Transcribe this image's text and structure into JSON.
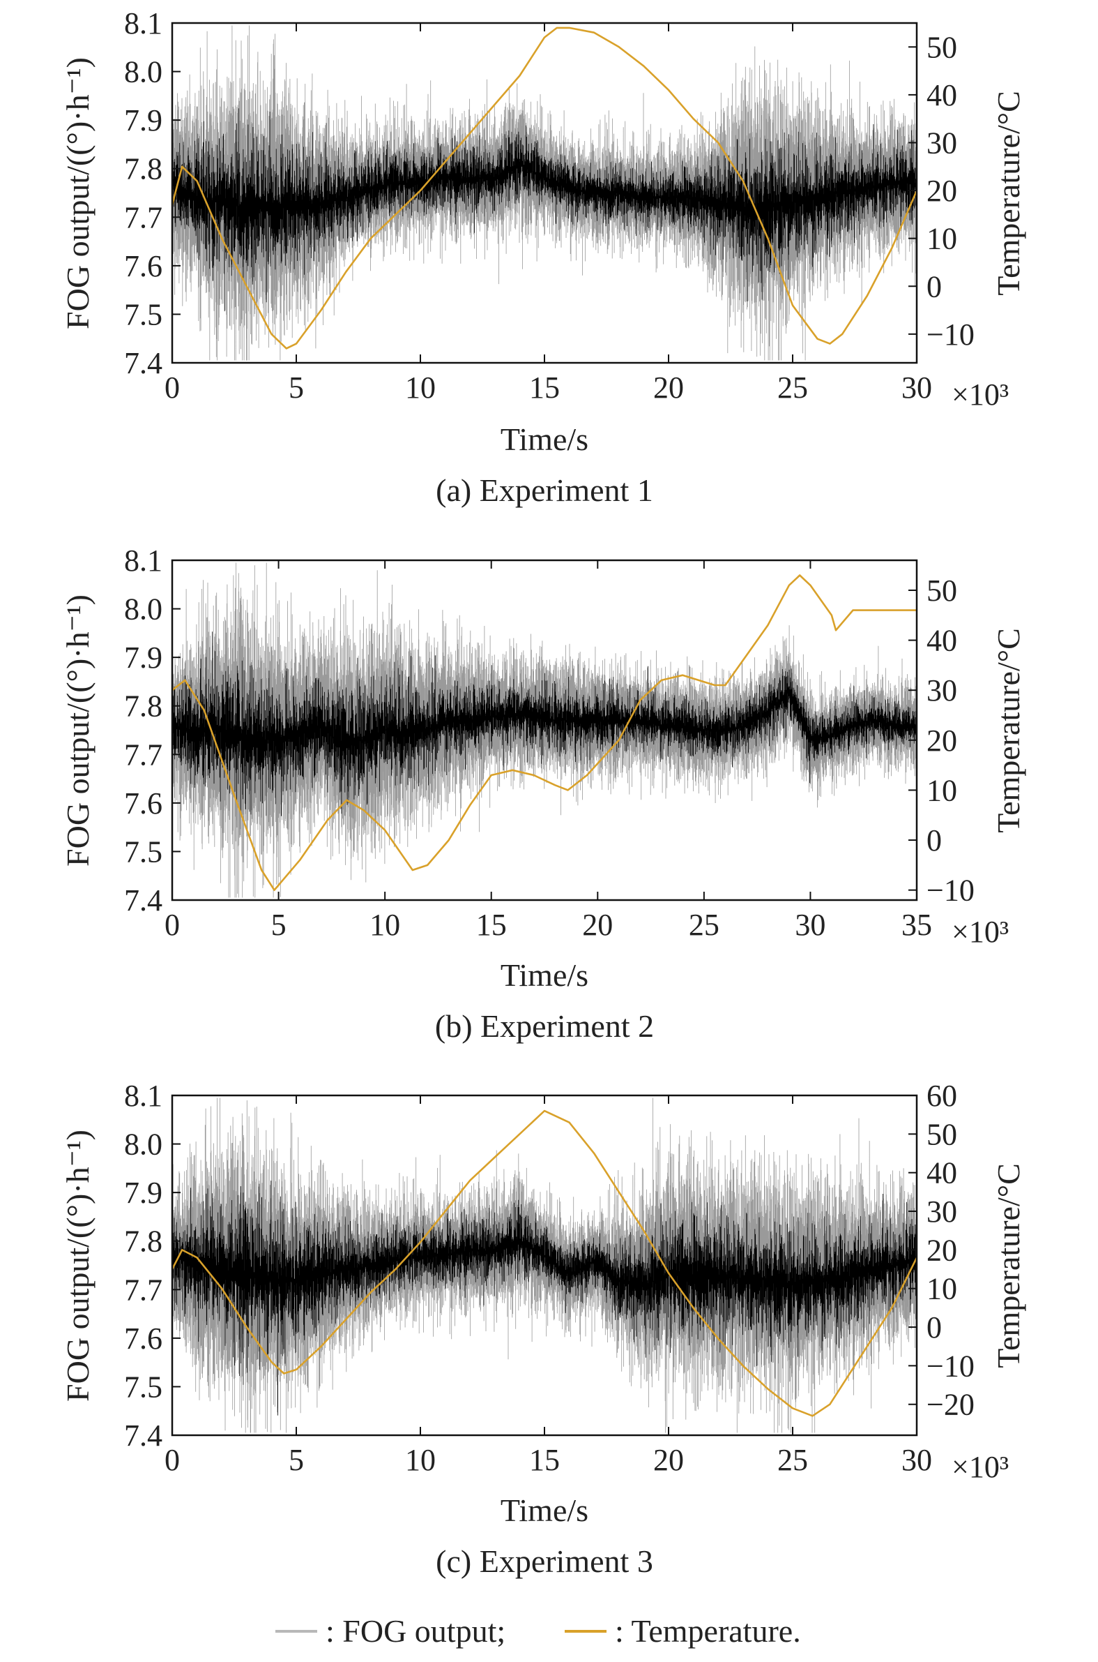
{
  "legend": {
    "fog_label": ": FOG output;",
    "temp_label": ": Temperature.",
    "fog_color": "#b8b8b8",
    "temp_color": "#d9a12a"
  },
  "chart_data": [
    {
      "type": "line",
      "caption": "(a) Experiment 1",
      "xlabel": "Time/s",
      "x_multiplier": "×10³",
      "ylabel_left": "FOG output/((°)·h⁻¹)",
      "ylabel_right": "Temperature/°C",
      "xlim": [
        0,
        30
      ],
      "xticks": [
        0,
        5,
        10,
        15,
        20,
        25,
        30
      ],
      "ylim_left": [
        7.4,
        8.1
      ],
      "yticks_left": [
        "7.4",
        "7.5",
        "7.6",
        "7.7",
        "7.8",
        "7.9",
        "8.0",
        "8.1"
      ],
      "ylim_right": [
        -16,
        55
      ],
      "yticks_right": [
        "−10",
        "0",
        "10",
        "20",
        "30",
        "40",
        "50"
      ],
      "series": [
        {
          "name": "FOG output",
          "axis": "left",
          "color": "#000000",
          "x": [
            0,
            1,
            2,
            3,
            4,
            5,
            6,
            7,
            8,
            9,
            10,
            11,
            12,
            13,
            14,
            15,
            16,
            17,
            18,
            19,
            20,
            21,
            22,
            23,
            24,
            25,
            26,
            27,
            28,
            29,
            30
          ],
          "mean": [
            7.77,
            7.74,
            7.73,
            7.72,
            7.72,
            7.72,
            7.73,
            7.74,
            7.76,
            7.77,
            7.77,
            7.78,
            7.78,
            7.78,
            7.81,
            7.78,
            7.76,
            7.75,
            7.75,
            7.74,
            7.74,
            7.74,
            7.73,
            7.72,
            7.72,
            7.73,
            7.74,
            7.75,
            7.76,
            7.77,
            7.77
          ],
          "spread": [
            0.09,
            0.12,
            0.15,
            0.16,
            0.15,
            0.13,
            0.1,
            0.08,
            0.07,
            0.07,
            0.07,
            0.07,
            0.07,
            0.07,
            0.08,
            0.06,
            0.06,
            0.06,
            0.06,
            0.06,
            0.06,
            0.07,
            0.1,
            0.14,
            0.15,
            0.13,
            0.11,
            0.09,
            0.08,
            0.08,
            0.08
          ]
        },
        {
          "name": "Temperature",
          "axis": "right",
          "color": "#d9a12a",
          "x": [
            0,
            0.4,
            1,
            2,
            3,
            4,
            4.6,
            5,
            6,
            7,
            8,
            9,
            10,
            11,
            12,
            13,
            14,
            15,
            15.5,
            16,
            17,
            18,
            19,
            20,
            21,
            22,
            23,
            24,
            25,
            26,
            26.5,
            27,
            28,
            29,
            30
          ],
          "y": [
            17,
            25,
            22,
            10,
            0,
            -10,
            -13,
            -12,
            -5,
            3,
            10,
            15,
            20,
            26,
            32,
            38,
            44,
            52,
            54,
            54,
            53,
            50,
            46,
            41,
            35,
            30,
            22,
            10,
            -4,
            -11,
            -12,
            -10,
            -2,
            8,
            20
          ]
        }
      ]
    },
    {
      "type": "line",
      "caption": "(b) Experiment 2",
      "xlabel": "Time/s",
      "x_multiplier": "×10³",
      "ylabel_left": "FOG output/((°)·h⁻¹)",
      "ylabel_right": "Temperature/°C",
      "xlim": [
        0,
        35
      ],
      "xticks": [
        0,
        5,
        10,
        15,
        20,
        25,
        30,
        35
      ],
      "ylim_left": [
        7.4,
        8.1
      ],
      "yticks_left": [
        "7.4",
        "7.5",
        "7.6",
        "7.7",
        "7.8",
        "7.9",
        "8.0",
        "8.1"
      ],
      "ylim_right": [
        -12,
        56
      ],
      "yticks_right": [
        "−10",
        "0",
        "10",
        "20",
        "30",
        "40",
        "50"
      ],
      "series": [
        {
          "name": "FOG output",
          "axis": "left",
          "color": "#000000",
          "x": [
            0,
            1,
            2,
            3,
            4,
            5,
            6,
            7,
            8,
            9,
            10,
            11,
            12,
            13,
            14,
            15,
            16,
            17,
            18,
            19,
            20,
            21,
            22,
            23,
            24,
            25,
            26,
            27,
            28,
            29,
            30,
            31,
            32,
            33,
            34,
            35
          ],
          "mean": [
            7.76,
            7.75,
            7.75,
            7.74,
            7.73,
            7.73,
            7.74,
            7.76,
            7.72,
            7.73,
            7.75,
            7.74,
            7.75,
            7.77,
            7.77,
            7.78,
            7.78,
            7.78,
            7.77,
            7.77,
            7.77,
            7.77,
            7.77,
            7.76,
            7.76,
            7.75,
            7.75,
            7.76,
            7.79,
            7.83,
            7.73,
            7.74,
            7.76,
            7.77,
            7.76,
            7.76
          ],
          "spread": [
            0.09,
            0.11,
            0.14,
            0.15,
            0.14,
            0.13,
            0.11,
            0.1,
            0.13,
            0.13,
            0.12,
            0.11,
            0.1,
            0.09,
            0.08,
            0.07,
            0.07,
            0.07,
            0.07,
            0.07,
            0.07,
            0.06,
            0.06,
            0.06,
            0.06,
            0.06,
            0.06,
            0.06,
            0.06,
            0.06,
            0.06,
            0.05,
            0.05,
            0.05,
            0.05,
            0.05
          ]
        },
        {
          "name": "Temperature",
          "axis": "right",
          "color": "#d9a12a",
          "x": [
            0,
            0.6,
            1.5,
            3,
            4.2,
            4.8,
            6,
            7.3,
            8.2,
            9,
            10,
            11.3,
            12,
            13,
            14,
            15,
            16,
            17,
            18,
            18.6,
            19.5,
            21,
            22,
            23,
            24,
            25.5,
            26,
            27,
            28,
            29,
            29.5,
            30,
            31,
            31.2,
            32,
            33,
            34,
            35
          ],
          "y": [
            30,
            32,
            26,
            8,
            -6,
            -10,
            -4,
            4,
            8,
            6,
            2,
            -6,
            -5,
            0,
            7,
            13,
            14,
            13,
            11,
            10,
            13,
            20,
            28,
            32,
            33,
            31,
            31,
            37,
            43,
            51,
            53,
            51,
            45,
            42,
            46,
            46,
            46,
            46
          ]
        }
      ]
    },
    {
      "type": "line",
      "caption": "(c) Experiment 3",
      "xlabel": "Time/s",
      "x_multiplier": "×10³",
      "ylabel_left": "FOG output/((°)·h⁻¹)",
      "ylabel_right": "Temperature/°C",
      "xlim": [
        0,
        30
      ],
      "xticks": [
        0,
        5,
        10,
        15,
        20,
        25,
        30
      ],
      "ylim_left": [
        7.4,
        8.1
      ],
      "yticks_left": [
        "7.4",
        "7.5",
        "7.6",
        "7.7",
        "7.8",
        "7.9",
        "8.0",
        "8.1"
      ],
      "ylim_right": [
        -28,
        60
      ],
      "yticks_right": [
        "−20",
        "−10",
        "0",
        "10",
        "20",
        "30",
        "40",
        "50",
        "60"
      ],
      "series": [
        {
          "name": "FOG output",
          "axis": "left",
          "color": "#000000",
          "x": [
            0,
            1,
            2,
            3,
            4,
            5,
            6,
            7,
            8,
            9,
            10,
            11,
            12,
            13,
            14,
            15,
            16,
            17,
            18,
            19,
            20,
            21,
            22,
            23,
            24,
            25,
            26,
            27,
            28,
            29,
            30
          ],
          "mean": [
            7.77,
            7.75,
            7.74,
            7.73,
            7.72,
            7.72,
            7.73,
            7.74,
            7.75,
            7.76,
            7.77,
            7.77,
            7.78,
            7.78,
            7.8,
            7.77,
            7.73,
            7.76,
            7.72,
            7.71,
            7.73,
            7.73,
            7.73,
            7.72,
            7.72,
            7.71,
            7.72,
            7.72,
            7.74,
            7.75,
            7.76
          ],
          "spread": [
            0.08,
            0.12,
            0.15,
            0.16,
            0.15,
            0.13,
            0.11,
            0.09,
            0.08,
            0.07,
            0.07,
            0.07,
            0.07,
            0.07,
            0.08,
            0.06,
            0.06,
            0.06,
            0.08,
            0.11,
            0.13,
            0.13,
            0.13,
            0.13,
            0.13,
            0.13,
            0.12,
            0.11,
            0.1,
            0.09,
            0.09
          ]
        },
        {
          "name": "Temperature",
          "axis": "right",
          "color": "#d9a12a",
          "x": [
            0,
            0.4,
            1,
            2,
            3,
            4,
            4.5,
            5,
            6,
            7,
            8,
            9,
            10,
            11,
            12,
            13,
            14,
            15,
            16,
            17,
            18,
            19,
            20,
            21,
            22,
            23,
            24,
            25,
            25.8,
            26.5,
            27,
            28,
            29,
            30
          ],
          "y": [
            15,
            20,
            18,
            10,
            0,
            -9,
            -12,
            -11,
            -5,
            2,
            9,
            15,
            22,
            30,
            38,
            44,
            50,
            56,
            53,
            45,
            35,
            25,
            14,
            5,
            -3,
            -10,
            -16,
            -21,
            -23,
            -20,
            -15,
            -5,
            5,
            18
          ]
        }
      ]
    }
  ]
}
